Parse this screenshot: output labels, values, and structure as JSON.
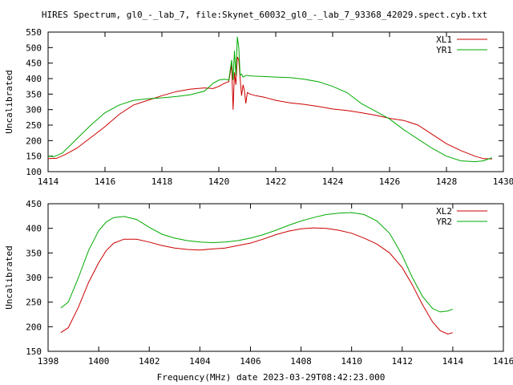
{
  "figure": {
    "title": "HIRES Spectrum, gl0_-_lab_7, file:Skynet_60032_gl0_-_lab_7_93368_42029.spect.cyb.txt",
    "xlabel": "Frequency(MHz) date 2023-03-29T08:42:23.000"
  },
  "chart_data": [
    {
      "type": "line",
      "ylabel": "Uncalibrated",
      "xlim": [
        1414,
        1430
      ],
      "ylim": [
        100,
        550
      ],
      "xticks": [
        1414,
        1416,
        1418,
        1420,
        1422,
        1424,
        1426,
        1428,
        1430
      ],
      "yticks": [
        100,
        150,
        200,
        250,
        300,
        350,
        400,
        450,
        500,
        550
      ],
      "legend_position": "top-right",
      "grid": false,
      "series": [
        {
          "name": "XL1",
          "color": "#cc0000",
          "x": [
            1414.0,
            1414.3,
            1414.6,
            1415.0,
            1415.5,
            1416.0,
            1416.5,
            1417.0,
            1417.5,
            1418.0,
            1418.5,
            1419.0,
            1419.5,
            1419.8,
            1420.0,
            1420.2,
            1420.35,
            1420.45,
            1420.5,
            1420.55,
            1420.6,
            1420.65,
            1420.7,
            1420.75,
            1420.8,
            1420.85,
            1420.9,
            1420.95,
            1421.0,
            1421.1,
            1421.3,
            1421.6,
            1422.0,
            1422.5,
            1423.0,
            1423.5,
            1424.0,
            1424.5,
            1425.0,
            1425.5,
            1426.0,
            1426.5,
            1427.0,
            1427.5,
            1428.0,
            1428.5,
            1429.0,
            1429.3,
            1429.6
          ],
          "y": [
            142,
            143,
            155,
            175,
            210,
            245,
            285,
            315,
            330,
            345,
            358,
            366,
            370,
            368,
            375,
            385,
            390,
            445,
            300,
            420,
            380,
            470,
            460,
            400,
            345,
            380,
            360,
            320,
            355,
            350,
            345,
            340,
            330,
            322,
            317,
            310,
            302,
            297,
            290,
            282,
            272,
            265,
            250,
            220,
            190,
            168,
            150,
            142,
            141
          ]
        },
        {
          "name": "YR1",
          "color": "#00aa00",
          "x": [
            1414.0,
            1414.2,
            1414.5,
            1415.0,
            1415.5,
            1416.0,
            1416.5,
            1417.0,
            1417.5,
            1418.0,
            1418.5,
            1419.0,
            1419.5,
            1419.8,
            1420.0,
            1420.2,
            1420.35,
            1420.45,
            1420.5,
            1420.55,
            1420.6,
            1420.65,
            1420.7,
            1420.75,
            1420.8,
            1420.85,
            1420.9,
            1420.95,
            1421.0,
            1421.2,
            1421.5,
            1422.0,
            1422.5,
            1423.0,
            1423.5,
            1424.0,
            1424.5,
            1425.0,
            1425.5,
            1426.0,
            1426.5,
            1427.0,
            1427.5,
            1428.0,
            1428.5,
            1429.0,
            1429.3,
            1429.6
          ],
          "y": [
            150,
            148,
            160,
            205,
            250,
            290,
            315,
            330,
            335,
            338,
            342,
            348,
            360,
            385,
            395,
            398,
            395,
            460,
            395,
            490,
            410,
            535,
            500,
            410,
            415,
            405,
            408,
            410,
            410,
            408,
            407,
            405,
            403,
            398,
            390,
            375,
            355,
            320,
            295,
            270,
            235,
            205,
            175,
            150,
            135,
            132,
            135,
            145
          ]
        }
      ]
    },
    {
      "type": "line",
      "ylabel": "Uncalibrated",
      "xlim": [
        1398,
        1416
      ],
      "ylim": [
        150,
        450
      ],
      "xticks": [
        1398,
        1400,
        1402,
        1404,
        1406,
        1408,
        1410,
        1412,
        1414,
        1416
      ],
      "yticks": [
        150,
        200,
        250,
        300,
        350,
        400,
        450
      ],
      "legend_position": "top-right",
      "grid": false,
      "series": [
        {
          "name": "XL2",
          "color": "#cc0000",
          "x": [
            1398.5,
            1398.8,
            1399.2,
            1399.6,
            1400.0,
            1400.3,
            1400.6,
            1401.0,
            1401.5,
            1402.0,
            1402.5,
            1403.0,
            1403.5,
            1404.0,
            1404.5,
            1405.0,
            1405.5,
            1406.0,
            1406.5,
            1407.0,
            1407.5,
            1408.0,
            1408.5,
            1409.0,
            1409.5,
            1410.0,
            1410.5,
            1411.0,
            1411.5,
            1412.0,
            1412.4,
            1412.8,
            1413.2,
            1413.5,
            1413.8,
            1414.0
          ],
          "y": [
            188,
            198,
            240,
            290,
            330,
            355,
            370,
            378,
            378,
            372,
            365,
            360,
            357,
            356,
            358,
            360,
            365,
            370,
            378,
            387,
            394,
            399,
            401,
            400,
            396,
            390,
            380,
            368,
            350,
            320,
            285,
            245,
            210,
            192,
            185,
            188
          ]
        },
        {
          "name": "YR2",
          "color": "#00aa00",
          "x": [
            1398.5,
            1398.8,
            1399.2,
            1399.6,
            1400.0,
            1400.3,
            1400.6,
            1401.0,
            1401.5,
            1402.0,
            1402.5,
            1403.0,
            1403.5,
            1404.0,
            1404.5,
            1405.0,
            1405.5,
            1406.0,
            1406.5,
            1407.0,
            1407.5,
            1408.0,
            1408.5,
            1409.0,
            1409.5,
            1410.0,
            1410.5,
            1411.0,
            1411.5,
            1412.0,
            1412.4,
            1412.8,
            1413.2,
            1413.5,
            1413.8,
            1414.0
          ],
          "y": [
            238,
            250,
            300,
            355,
            395,
            413,
            422,
            424,
            418,
            402,
            388,
            380,
            375,
            372,
            371,
            372,
            375,
            380,
            387,
            396,
            406,
            415,
            422,
            428,
            431,
            432,
            428,
            415,
            390,
            345,
            300,
            262,
            237,
            230,
            232,
            236
          ]
        }
      ]
    }
  ]
}
